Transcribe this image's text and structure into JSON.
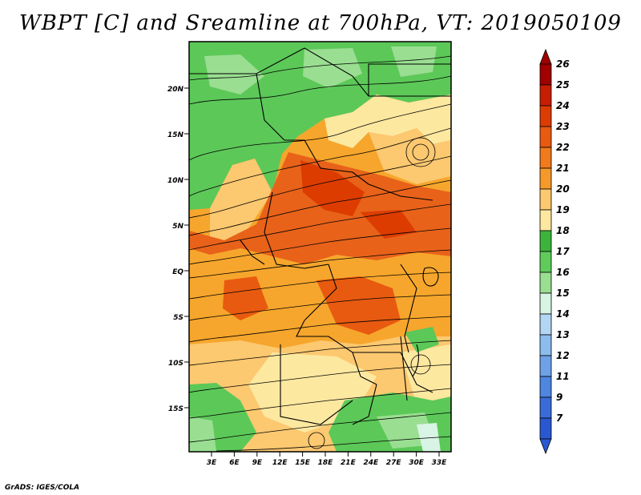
{
  "title": "WBPT [C] and Sreamline at 700hPa, VT: 2019050109",
  "credit": "GrADS: IGES/COLA",
  "map": {
    "lat_ticks": [
      "20N",
      "15N",
      "10N",
      "5N",
      "EQ",
      "5S",
      "10S",
      "15S"
    ],
    "lon_ticks": [
      "3E",
      "6E",
      "9E",
      "12E",
      "15E",
      "18E",
      "21E",
      "24E",
      "27E",
      "30E",
      "33E"
    ]
  },
  "legend": {
    "labels": [
      "26",
      "25",
      "24",
      "23",
      "22",
      "21",
      "20",
      "19",
      "18",
      "17",
      "16",
      "15",
      "14",
      "13",
      "12",
      "11",
      "9",
      "7"
    ],
    "colors": [
      "#a00000",
      "#c81e00",
      "#dc3c00",
      "#e85a10",
      "#f07a1c",
      "#f59a2a",
      "#fcc870",
      "#fde8a0",
      "#3cb43c",
      "#5fcc5a",
      "#9ade92",
      "#d8f4e4",
      "#b4d6f5",
      "#8cbcee",
      "#6ea2e8",
      "#4e86e0",
      "#3a6cd8",
      "#2a58d0"
    ]
  }
}
